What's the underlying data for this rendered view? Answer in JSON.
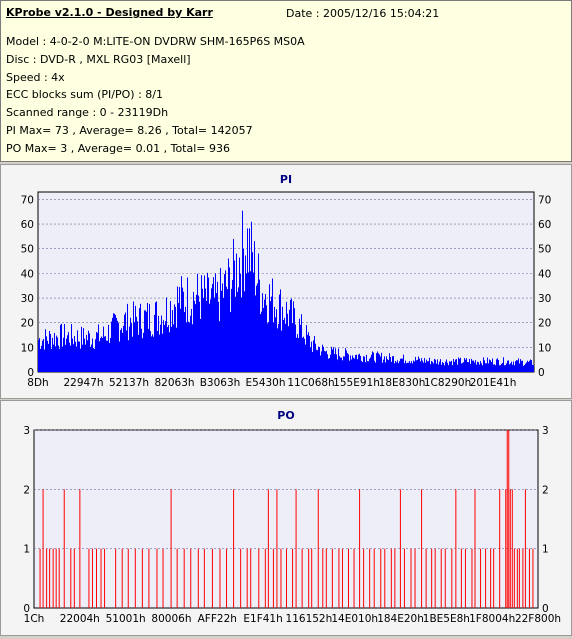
{
  "header": {
    "title": "KProbe v2.1.0 - Designed by Karr",
    "date": "Date : 2005/12/16 15:04:21",
    "lines": [
      "Model : 4-0-2-0 M:LITE-ON DVDRW SHM-165P6S MS0A",
      "Disc : DVD-R , MXL RG03 [Maxell]",
      "Speed : 4x",
      "ECC blocks sum (PI/PO) : 8/1",
      "Scanned range : 0 - 23119Dh",
      "PI Max= 73 , Average= 8.26 , Total= 142057",
      "PO Max= 3 , Average= 0.01 , Total= 936"
    ]
  },
  "chart_data": [
    {
      "type": "bar",
      "title": "PI",
      "color": "#0000ff",
      "ylim": [
        0,
        73
      ],
      "y_ticks": [
        "0",
        "10",
        "20",
        "30",
        "40",
        "50",
        "60",
        "70"
      ],
      "x_ticks": [
        "8Dh",
        "22947h",
        "52137h",
        "82063h",
        "B3063h",
        "E5430h",
        "11C068h",
        "155E91h",
        "18E830h",
        "1C8290h",
        "201E41h"
      ],
      "envelope_x": [
        0,
        5,
        9,
        13,
        17,
        20,
        25,
        28,
        32,
        36,
        39,
        42,
        45,
        49,
        52,
        55,
        58,
        61,
        65,
        70,
        75,
        80,
        86,
        91,
        95,
        100
      ],
      "envelope_y": [
        18,
        20,
        19,
        20,
        28,
        29,
        32,
        40,
        42,
        40,
        52,
        73,
        45,
        36,
        28,
        16,
        11,
        10,
        9,
        8,
        7,
        6,
        6,
        6,
        6,
        5
      ],
      "grid": true
    },
    {
      "type": "bar",
      "title": "PO",
      "color": "#ff0000",
      "ylim": [
        0,
        3
      ],
      "y_ticks": [
        "0",
        "1",
        "2",
        "3"
      ],
      "x_ticks": [
        "1Ch",
        "22004h",
        "51001h",
        "80006h",
        "AFF22h",
        "E1F41h",
        "116152h",
        "14E010h",
        "184E20h",
        "1BE5E8h",
        "1F8004h",
        "22F800h"
      ],
      "spikes_x": [
        1.2,
        1.8,
        2.5,
        3.1,
        3.8,
        4.4,
        5.0,
        6.0,
        7.3,
        8.0,
        9.1,
        10.9,
        11.6,
        12.4,
        13.3,
        14.0,
        16.2,
        17.5,
        18.7,
        20.1,
        21.5,
        22.8,
        24.4,
        25.6,
        27.2,
        28.4,
        29.8,
        31.1,
        32.6,
        33.8,
        35.4,
        36.9,
        38.2,
        39.6,
        41.0,
        42.3,
        43.0,
        44.6,
        45.9,
        46.5,
        47.5,
        48.2,
        49.0,
        50.1,
        51.3,
        52.0,
        53.2,
        54.5,
        55.1,
        56.4,
        57.3,
        58.0,
        59.2,
        60.5,
        61.2,
        62.4,
        63.5,
        64.6,
        65.4,
        66.6,
        67.5,
        68.8,
        69.6,
        70.9,
        71.6,
        72.7,
        73.5,
        74.8,
        75.6,
        76.9,
        77.8,
        78.9,
        79.6,
        80.8,
        81.6,
        82.9,
        83.7,
        84.8,
        85.6,
        86.9,
        87.5,
        88.6,
        89.6,
        90.6,
        91.2,
        92.4,
        93.6,
        93.9,
        94.2,
        94.5,
        94.9,
        95.3,
        95.9,
        96.3,
        97.0,
        97.5,
        98.3,
        99.0
      ],
      "spikes_y": [
        1,
        2,
        1,
        1,
        1,
        1,
        1,
        2,
        1,
        1,
        2,
        1,
        1,
        1,
        1,
        1,
        1,
        1,
        1,
        1,
        1,
        1,
        1,
        1,
        2,
        1,
        1,
        1,
        1,
        1,
        1,
        1,
        1,
        2,
        1,
        1,
        1,
        1,
        1,
        2,
        1,
        2,
        1,
        1,
        1,
        2,
        1,
        1,
        1,
        2,
        1,
        1,
        1,
        1,
        1,
        1,
        1,
        2,
        1,
        1,
        1,
        1,
        1,
        1,
        1,
        2,
        1,
        1,
        1,
        2,
        1,
        1,
        1,
        1,
        1,
        1,
        2,
        1,
        1,
        1,
        2,
        1,
        1,
        1,
        1,
        2,
        2,
        3,
        3,
        2,
        2,
        1,
        1,
        1,
        1,
        2,
        1,
        1
      ],
      "grid": true
    }
  ]
}
